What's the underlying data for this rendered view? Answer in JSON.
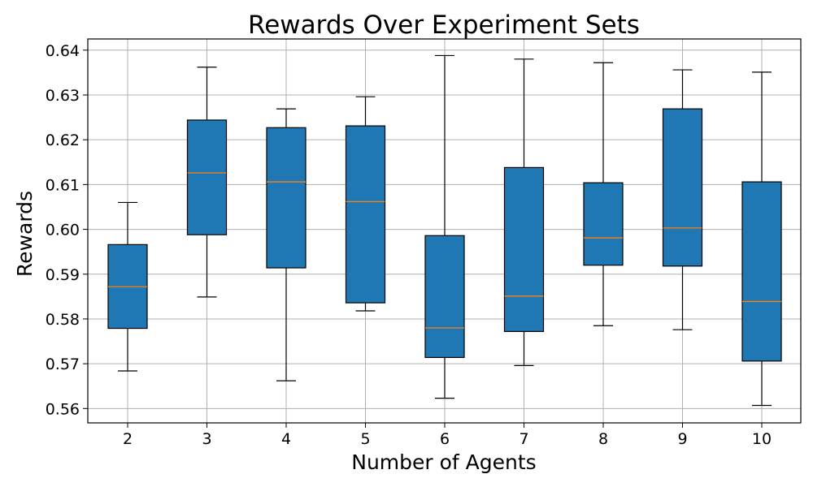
{
  "chart_data": {
    "type": "box",
    "title": "Rewards Over Experiment Sets",
    "xlabel": "Number of Agents",
    "ylabel": "Rewards",
    "ylim": [
      0.5568,
      0.6425
    ],
    "yticks": [
      0.56,
      0.57,
      0.58,
      0.59,
      0.6,
      0.61,
      0.62,
      0.63,
      0.64
    ],
    "ytick_labels": [
      "0.56",
      "0.57",
      "0.58",
      "0.59",
      "0.60",
      "0.61",
      "0.62",
      "0.63",
      "0.64"
    ],
    "grid": true,
    "box_color": "#1f77b4",
    "median_color": "#ff7f0e",
    "categories": [
      "2",
      "3",
      "4",
      "5",
      "6",
      "7",
      "8",
      "9",
      "10"
    ],
    "boxes": [
      {
        "category": "2",
        "whisker_low": 0.5684,
        "q1": 0.5779,
        "median": 0.5872,
        "q3": 0.5966,
        "whisker_high": 0.606
      },
      {
        "category": "3",
        "whisker_low": 0.5849,
        "q1": 0.5988,
        "median": 0.6126,
        "q3": 0.6244,
        "whisker_high": 0.6362
      },
      {
        "category": "4",
        "whisker_low": 0.5662,
        "q1": 0.5914,
        "median": 0.6106,
        "q3": 0.6227,
        "whisker_high": 0.6269
      },
      {
        "category": "5",
        "whisker_low": 0.5818,
        "q1": 0.5836,
        "median": 0.6062,
        "q3": 0.6231,
        "whisker_high": 0.6296
      },
      {
        "category": "6",
        "whisker_low": 0.5623,
        "q1": 0.5714,
        "median": 0.578,
        "q3": 0.5986,
        "whisker_high": 0.6388
      },
      {
        "category": "7",
        "whisker_low": 0.5696,
        "q1": 0.5772,
        "median": 0.5851,
        "q3": 0.6138,
        "whisker_high": 0.638
      },
      {
        "category": "8",
        "whisker_low": 0.5785,
        "q1": 0.592,
        "median": 0.5981,
        "q3": 0.6104,
        "whisker_high": 0.6372
      },
      {
        "category": "9",
        "whisker_low": 0.5776,
        "q1": 0.5918,
        "median": 0.6003,
        "q3": 0.6269,
        "whisker_high": 0.6356
      },
      {
        "category": "10",
        "whisker_low": 0.5607,
        "q1": 0.5706,
        "median": 0.5839,
        "q3": 0.6106,
        "whisker_high": 0.6351
      }
    ]
  }
}
